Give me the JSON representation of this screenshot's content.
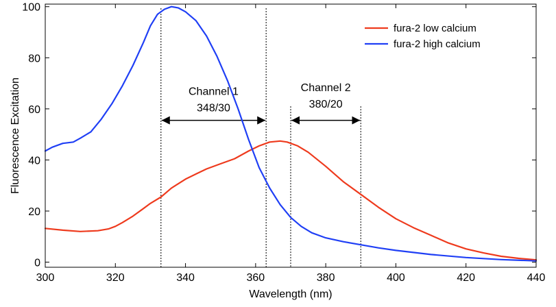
{
  "chart_data": {
    "type": "line",
    "xlabel": "Wavelength (nm)",
    "ylabel": "Fluorescence Excitation",
    "xlim": [
      300,
      440
    ],
    "ylim": [
      -2,
      101
    ],
    "xticks": [
      300,
      320,
      340,
      360,
      380,
      400,
      420,
      440
    ],
    "yticks": [
      0,
      20,
      40,
      60,
      80,
      100
    ],
    "grid": false,
    "legend_position": "top-right",
    "series": [
      {
        "name": "fura-2 low calcium",
        "color": "#ee3a1d",
        "x": [
          300,
          305,
          310,
          315,
          318,
          320,
          322,
          325,
          328,
          330,
          333,
          336,
          340,
          343,
          346,
          350,
          354,
          358,
          361,
          364,
          367,
          369,
          372,
          375,
          380,
          385,
          390,
          395,
          400,
          405,
          410,
          415,
          420,
          425,
          430,
          435,
          440
        ],
        "values": [
          13.2,
          12.5,
          12.0,
          12.3,
          13.0,
          14.0,
          15.5,
          18.0,
          21.0,
          23.0,
          25.5,
          29.0,
          32.5,
          34.5,
          36.5,
          38.5,
          40.5,
          43.5,
          45.5,
          47.0,
          47.4,
          47.0,
          45.5,
          43.0,
          37.5,
          31.5,
          26.5,
          21.5,
          17.0,
          13.5,
          10.5,
          7.5,
          5.2,
          3.6,
          2.3,
          1.5,
          0.9
        ]
      },
      {
        "name": "fura-2 high calcium",
        "color": "#1f3ff5",
        "x": [
          300,
          302,
          305,
          308,
          310,
          313,
          316,
          319,
          322,
          325,
          328,
          330,
          332,
          334,
          336,
          338,
          340,
          343,
          346,
          349,
          352,
          355,
          358,
          361,
          364,
          367,
          370,
          373,
          376,
          380,
          385,
          390,
          395,
          400,
          410,
          420,
          430,
          440
        ],
        "values": [
          43.5,
          45.0,
          46.5,
          47.0,
          48.5,
          51.0,
          56.0,
          62.0,
          69.0,
          77.0,
          86.0,
          92.5,
          97.0,
          99.0,
          100.0,
          99.5,
          98.0,
          94.5,
          88.5,
          80.5,
          71.0,
          60.0,
          48.0,
          37.0,
          29.0,
          22.5,
          17.5,
          14.0,
          11.5,
          9.5,
          8.0,
          6.8,
          5.6,
          4.6,
          3.0,
          1.8,
          1.0,
          0.5
        ]
      }
    ],
    "annotations": [
      {
        "label": "Channel 1",
        "sublabel": "348/30",
        "x_start": 333,
        "x_end": 363
      },
      {
        "label": "Channel 2",
        "sublabel": "380/20",
        "x_start": 370,
        "x_end": 390
      }
    ]
  }
}
